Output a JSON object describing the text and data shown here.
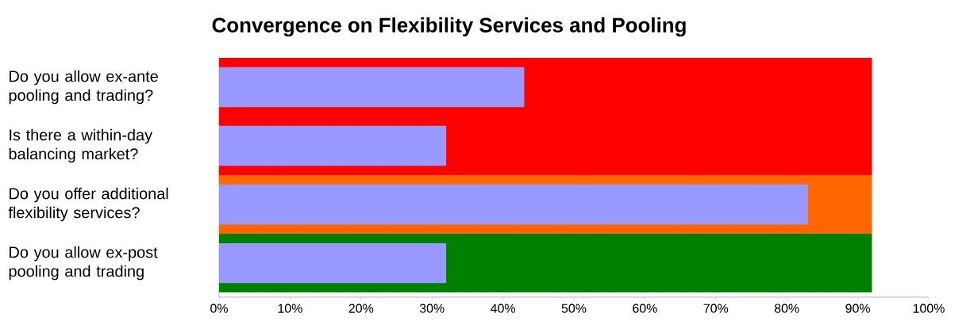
{
  "chart_data": {
    "type": "bar",
    "orientation": "horizontal",
    "title": "Convergence on Flexibility Services and Pooling",
    "categories": [
      "Do you allow ex-ante pooling and trading?",
      "Is there a within-day balancing market?",
      "Do you offer additional flexibility services?",
      "Do you allow ex-post pooling and trading"
    ],
    "series": [
      {
        "colors": [
          "#ff0000",
          "#ff0000",
          "#ff6600",
          "#008000"
        ],
        "values": [
          92,
          92,
          92,
          92
        ]
      },
      {
        "color": "#9999ff",
        "values": [
          43,
          32,
          83,
          32
        ]
      }
    ],
    "xlim": [
      0,
      100
    ],
    "xticks": [
      {
        "value": 0,
        "label": "0%"
      },
      {
        "value": 10,
        "label": "10%"
      },
      {
        "value": 20,
        "label": "20%"
      },
      {
        "value": 30,
        "label": "30%"
      },
      {
        "value": 40,
        "label": "40%"
      },
      {
        "value": 50,
        "label": "50%"
      },
      {
        "value": 60,
        "label": "60%"
      },
      {
        "value": 70,
        "label": "70%"
      },
      {
        "value": 80,
        "label": "80%"
      },
      {
        "value": 90,
        "label": "90%"
      },
      {
        "value": 100,
        "label": "100%"
      }
    ]
  }
}
